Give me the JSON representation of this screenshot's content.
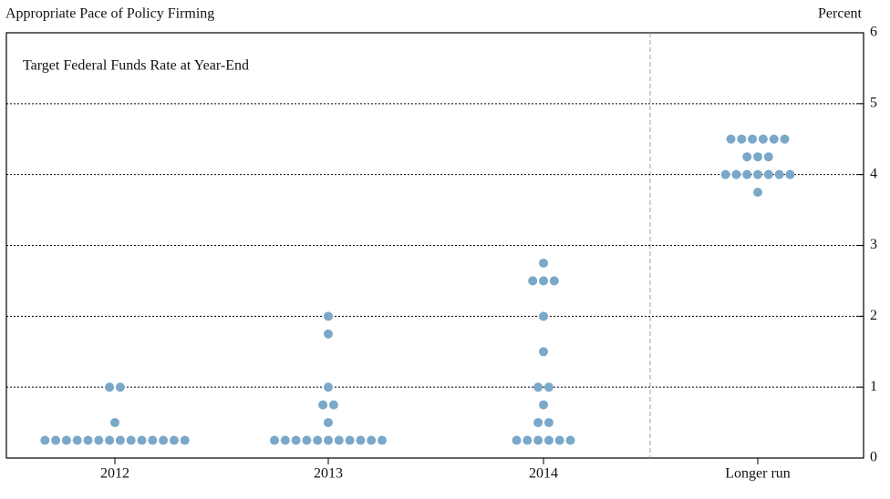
{
  "chart_data": {
    "type": "dot",
    "title": "Appropriate Pace of Policy Firming",
    "subtitle": "Target Federal Funds Rate at Year-End",
    "y_label": "Percent",
    "categories": [
      "2012",
      "2013",
      "2014",
      "Longer run"
    ],
    "values": [
      [
        0.25,
        0.25,
        0.25,
        0.25,
        0.25,
        0.25,
        0.25,
        0.25,
        0.25,
        0.25,
        0.25,
        0.25,
        0.25,
        0.25,
        0.5,
        1,
        1
      ],
      [
        0.25,
        0.25,
        0.25,
        0.25,
        0.25,
        0.25,
        0.25,
        0.25,
        0.25,
        0.25,
        0.25,
        0.5,
        0.75,
        0.75,
        1,
        1.75,
        2
      ],
      [
        0.25,
        0.25,
        0.25,
        0.25,
        0.25,
        0.25,
        0.5,
        0.5,
        0.75,
        1,
        1,
        1.5,
        2,
        2.5,
        2.5,
        2.5,
        2.75
      ],
      [
        3.75,
        4,
        4,
        4,
        4,
        4,
        4,
        4,
        4.25,
        4.25,
        4.25,
        4.5,
        4.5,
        4.5,
        4.5,
        4.5,
        4.5
      ]
    ],
    "color": "#7aa8c9",
    "ylim": [
      0,
      6
    ],
    "yticks": [
      0,
      1,
      2,
      3,
      4,
      5,
      6
    ],
    "grid": true
  }
}
